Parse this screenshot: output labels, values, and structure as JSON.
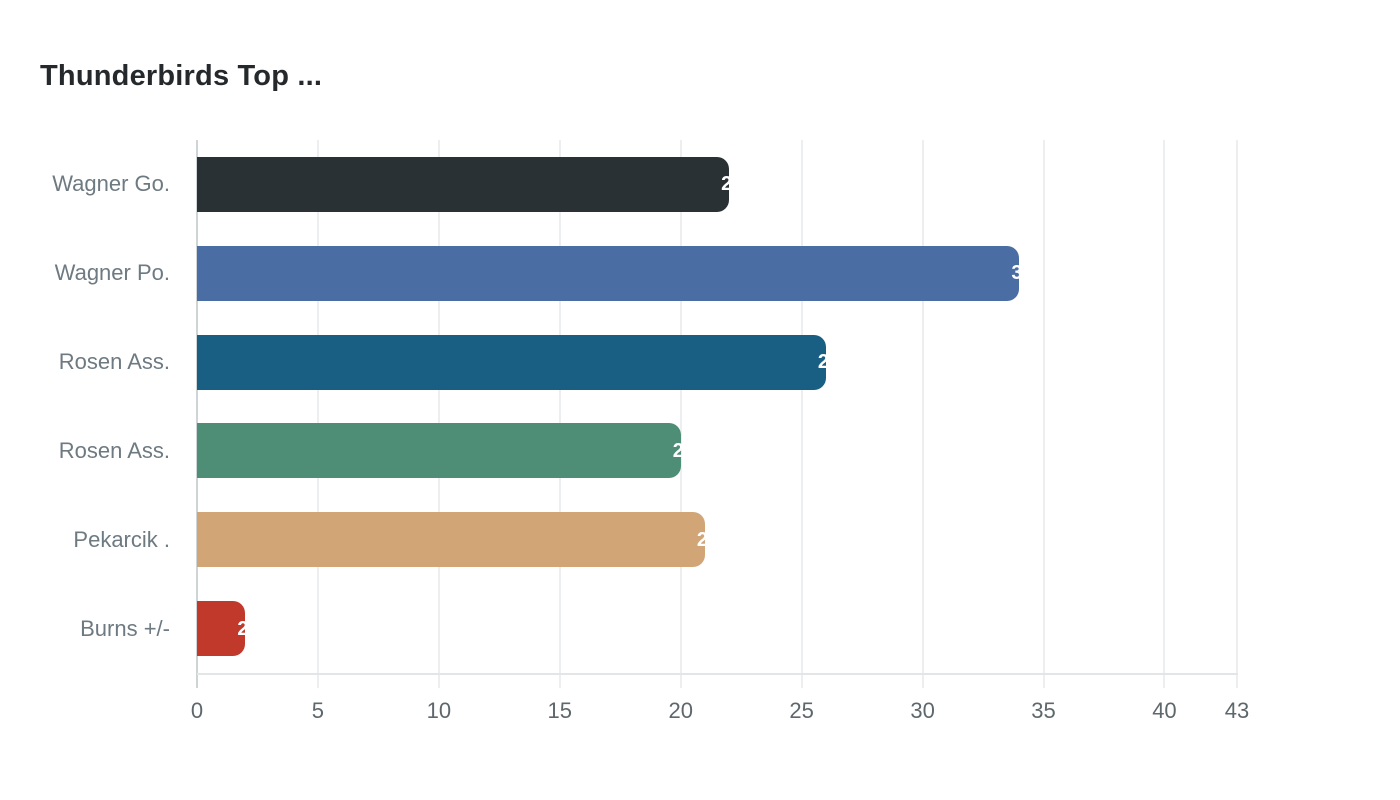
{
  "title": "Thunderbirds Top ...",
  "chart_data": {
    "type": "bar",
    "orientation": "horizontal",
    "title": "Thunderbirds Top ...",
    "categories": [
      "Wagner Go.",
      "Wagner Po.",
      "Rosen Ass.",
      "Rosen Ass.",
      "Pekarcik .",
      "Burns +/-"
    ],
    "values": [
      22,
      34,
      26,
      20,
      21,
      2
    ],
    "bar_colors": [
      "#2a3135",
      "#4a6da3",
      "#195e83",
      "#4e8d76",
      "#d2a576",
      "#c0392b"
    ],
    "value_label_color": "#ffffff",
    "xticks": [
      0,
      5,
      10,
      15,
      20,
      25,
      30,
      35,
      40,
      43
    ],
    "xlim": [
      0,
      43
    ],
    "xlabel": "",
    "ylabel": "",
    "grid": true,
    "legend": false
  },
  "colors": {
    "background": "#ffffff",
    "title_text": "#25292c",
    "category_text": "#6e7a81",
    "tick_text": "#5d676c",
    "gridline": "#eceeef",
    "zero_axis": "#cfd4d6",
    "bottom_line": "#e3e6e7"
  }
}
